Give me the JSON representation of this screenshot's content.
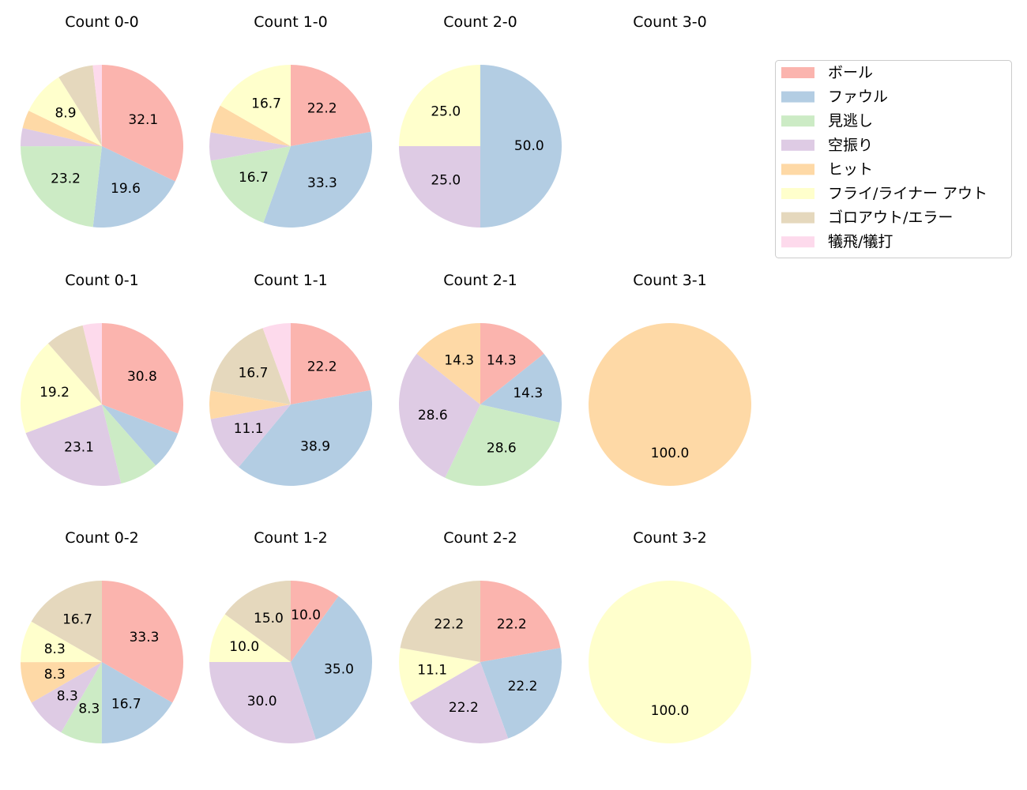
{
  "chart_data": {
    "type": "pie",
    "legend_placement": "upper-right",
    "categories": [
      "ボール",
      "ファウル",
      "見逃し",
      "空振り",
      "ヒット",
      "フライ/ライナー アウト",
      "ゴロアウト/エラー",
      "犠飛/犠打"
    ],
    "colors": [
      "#fbb4ae",
      "#b3cde3",
      "#ccebc5",
      "#decbe4",
      "#fed9a6",
      "#ffffcc",
      "#e5d8bd",
      "#fddaec"
    ],
    "label_format": "percent, 1 decimal; small slices unlabeled",
    "subplots": [
      {
        "title": "Count 0-0",
        "values": [
          32.1,
          19.6,
          23.2,
          3.6,
          3.6,
          8.9,
          7.1,
          1.8
        ]
      },
      {
        "title": "Count 1-0",
        "values": [
          22.2,
          33.3,
          16.7,
          5.6,
          5.6,
          16.7,
          0,
          0
        ]
      },
      {
        "title": "Count 2-0",
        "values": [
          0,
          50.0,
          0,
          25.0,
          0,
          25.0,
          0,
          0
        ]
      },
      {
        "title": "Count 3-0",
        "values": []
      },
      {
        "title": "Count 0-1",
        "values": [
          30.8,
          7.7,
          7.7,
          23.1,
          0,
          19.2,
          7.7,
          3.8
        ]
      },
      {
        "title": "Count 1-1",
        "values": [
          22.2,
          38.9,
          0,
          11.1,
          5.6,
          0,
          16.7,
          5.6
        ]
      },
      {
        "title": "Count 2-1",
        "values": [
          14.3,
          14.3,
          28.6,
          28.6,
          14.3,
          0,
          0,
          0
        ]
      },
      {
        "title": "Count 3-1",
        "values": [
          0,
          0,
          0,
          0,
          100.0,
          0,
          0,
          0
        ]
      },
      {
        "title": "Count 0-2",
        "values": [
          33.3,
          16.7,
          8.3,
          8.3,
          8.3,
          8.3,
          16.7,
          0
        ]
      },
      {
        "title": "Count 1-2",
        "values": [
          10.0,
          35.0,
          0,
          30.0,
          0,
          10.0,
          15.0,
          0
        ]
      },
      {
        "title": "Count 2-2",
        "values": [
          22.2,
          22.2,
          0,
          22.2,
          0,
          11.1,
          22.2,
          0
        ]
      },
      {
        "title": "Count 3-2",
        "values": [
          0,
          0,
          0,
          0,
          0,
          100.0,
          0,
          0
        ]
      }
    ]
  }
}
